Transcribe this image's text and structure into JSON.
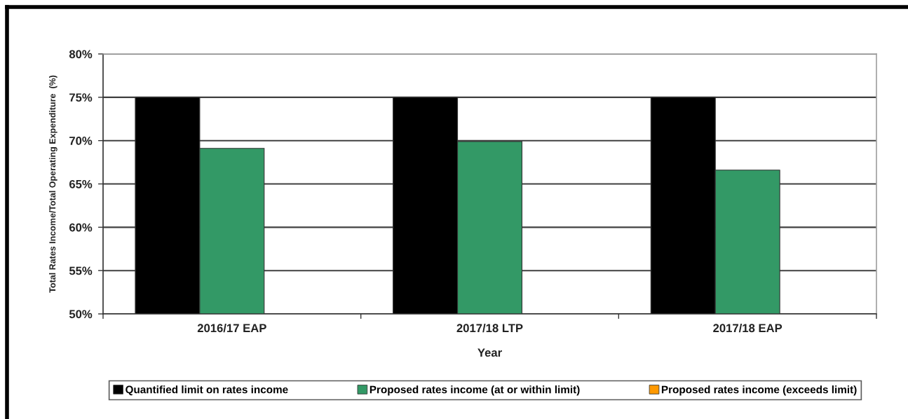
{
  "chart_data": {
    "type": "bar",
    "xlabel": "Year",
    "ylabel": "Total Rates Income/Total Operating Expenditure  (%)",
    "categories": [
      "2016/17 EAP",
      "2017/18 LTP",
      "2017/18 EAP"
    ],
    "series": [
      {
        "name": "Quantified limit on rates income",
        "color": "#000000",
        "values": [
          75,
          75,
          75
        ]
      },
      {
        "name": "Proposed rates income (at or within limit)",
        "color": "#339966",
        "values": [
          69.1,
          69.9,
          66.6
        ]
      },
      {
        "name": "Proposed rates income (exceeds limit)",
        "color": "#ff9900",
        "values": [
          null,
          null,
          null
        ]
      }
    ],
    "ylim": [
      50,
      80
    ],
    "yticks": [
      {
        "value": 50,
        "label": "50%"
      },
      {
        "value": 55,
        "label": "55%"
      },
      {
        "value": 60,
        "label": "60%"
      },
      {
        "value": 65,
        "label": "65%"
      },
      {
        "value": 70,
        "label": "70%"
      },
      {
        "value": 75,
        "label": "75%"
      },
      {
        "value": 80,
        "label": "80%"
      }
    ],
    "grid": "y",
    "legend": "bottom"
  }
}
